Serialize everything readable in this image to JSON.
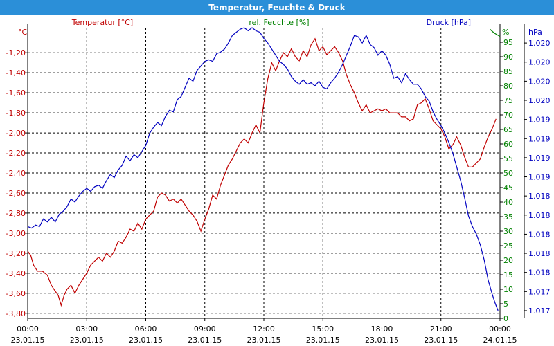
{
  "window": {
    "title": "Temperatur, Feuchte & Druck"
  },
  "chart_data": {
    "type": "line",
    "title": "Temperatur, Feuchte & Druck",
    "grid": true,
    "x": {
      "labels": [
        {
          "time": "00:00",
          "date": "23.01.15",
          "hour": 0
        },
        {
          "time": "03:00",
          "date": "23.01.15",
          "hour": 3
        },
        {
          "time": "06:00",
          "date": "23.01.15",
          "hour": 6
        },
        {
          "time": "09:00",
          "date": "23.01.15",
          "hour": 9
        },
        {
          "time": "12:00",
          "date": "23.01.15",
          "hour": 12
        },
        {
          "time": "15:00",
          "date": "23.01.15",
          "hour": 15
        },
        {
          "time": "18:00",
          "date": "23.01.15",
          "hour": 18
        },
        {
          "time": "21:00",
          "date": "23.01.15",
          "hour": 21
        },
        {
          "time": "00:00",
          "date": "24.01.15",
          "hour": 24
        }
      ],
      "range": [
        0,
        24
      ]
    },
    "axes": {
      "temperature": {
        "label": "Temperatur [°C]",
        "unit": "°C",
        "color": "#c00000",
        "range": [
          -3.85,
          -0.95
        ],
        "ticks": [
          "-1,20",
          "-1,40",
          "-1,60",
          "-1,80",
          "-2,00",
          "-2,20",
          "-2,40",
          "-2,60",
          "-2,80",
          "-3,00",
          "-3,20",
          "-3,40",
          "-3,60",
          "-3,80"
        ],
        "tick_values": [
          -1.2,
          -1.4,
          -1.6,
          -1.8,
          -2.0,
          -2.2,
          -2.4,
          -2.6,
          -2.8,
          -3.0,
          -3.2,
          -3.4,
          -3.6,
          -3.8
        ]
      },
      "humidity": {
        "label": "rel. Feuchte [%]",
        "unit": "%",
        "color": "#008000",
        "range": [
          0,
          100
        ],
        "ticks": [
          "95",
          "90",
          "85",
          "80",
          "75",
          "70",
          "65",
          "60",
          "55",
          "50",
          "45",
          "40",
          "35",
          "30",
          "25",
          "20",
          "15",
          "10",
          "5",
          "0"
        ],
        "tick_values": [
          95,
          90,
          85,
          80,
          75,
          70,
          65,
          60,
          55,
          50,
          45,
          40,
          35,
          30,
          25,
          20,
          15,
          10,
          5,
          0
        ]
      },
      "pressure": {
        "label": "Druck [hPa]",
        "unit": "hPa",
        "color": "#0000c0",
        "range": [
          1016.6,
          1020.4
        ],
        "ticks": [
          "1.020",
          "1.020",
          "1.020",
          "1.020",
          "1.019",
          "1.019",
          "1.019",
          "1.019",
          "1.018",
          "1.018",
          "1.018",
          "1.018",
          "1.018",
          "1.017",
          "1.017"
        ],
        "tick_values": [
          1020.2,
          1019.95,
          1019.7,
          1019.45,
          1019.2,
          1018.95,
          1018.7,
          1018.45,
          1018.2,
          1017.95,
          1017.7,
          1017.45,
          1017.2,
          1016.95,
          1016.7
        ]
      }
    },
    "series": [
      {
        "name": "Temperatur [°C]",
        "axis": "temperature",
        "color": "#c00000",
        "points": [
          [
            0.0,
            -3.18
          ],
          [
            0.15,
            -3.22
          ],
          [
            0.3,
            -3.32
          ],
          [
            0.5,
            -3.38
          ],
          [
            0.75,
            -3.38
          ],
          [
            1.0,
            -3.42
          ],
          [
            1.2,
            -3.52
          ],
          [
            1.4,
            -3.58
          ],
          [
            1.55,
            -3.62
          ],
          [
            1.7,
            -3.72
          ],
          [
            1.85,
            -3.62
          ],
          [
            2.0,
            -3.56
          ],
          [
            2.2,
            -3.52
          ],
          [
            2.4,
            -3.6
          ],
          [
            2.6,
            -3.52
          ],
          [
            2.8,
            -3.46
          ],
          [
            3.0,
            -3.4
          ],
          [
            3.2,
            -3.32
          ],
          [
            3.4,
            -3.28
          ],
          [
            3.6,
            -3.24
          ],
          [
            3.8,
            -3.28
          ],
          [
            4.0,
            -3.2
          ],
          [
            4.2,
            -3.24
          ],
          [
            4.4,
            -3.18
          ],
          [
            4.6,
            -3.08
          ],
          [
            4.8,
            -3.1
          ],
          [
            5.0,
            -3.04
          ],
          [
            5.2,
            -2.96
          ],
          [
            5.4,
            -2.98
          ],
          [
            5.6,
            -2.9
          ],
          [
            5.8,
            -2.96
          ],
          [
            6.0,
            -2.86
          ],
          [
            6.2,
            -2.82
          ],
          [
            6.4,
            -2.78
          ],
          [
            6.6,
            -2.64
          ],
          [
            6.8,
            -2.6
          ],
          [
            7.0,
            -2.62
          ],
          [
            7.2,
            -2.68
          ],
          [
            7.4,
            -2.66
          ],
          [
            7.6,
            -2.7
          ],
          [
            7.8,
            -2.66
          ],
          [
            8.0,
            -2.72
          ],
          [
            8.2,
            -2.78
          ],
          [
            8.4,
            -2.82
          ],
          [
            8.6,
            -2.88
          ],
          [
            8.8,
            -2.98
          ],
          [
            9.0,
            -2.86
          ],
          [
            9.2,
            -2.76
          ],
          [
            9.4,
            -2.62
          ],
          [
            9.6,
            -2.66
          ],
          [
            9.8,
            -2.52
          ],
          [
            10.0,
            -2.42
          ],
          [
            10.2,
            -2.32
          ],
          [
            10.4,
            -2.26
          ],
          [
            10.6,
            -2.18
          ],
          [
            10.8,
            -2.1
          ],
          [
            11.0,
            -2.06
          ],
          [
            11.2,
            -2.1
          ],
          [
            11.4,
            -2.0
          ],
          [
            11.6,
            -1.92
          ],
          [
            11.8,
            -2.0
          ],
          [
            12.0,
            -1.7
          ],
          [
            12.2,
            -1.46
          ],
          [
            12.4,
            -1.3
          ],
          [
            12.6,
            -1.38
          ],
          [
            12.8,
            -1.28
          ],
          [
            13.0,
            -1.2
          ],
          [
            13.2,
            -1.24
          ],
          [
            13.4,
            -1.16
          ],
          [
            13.6,
            -1.24
          ],
          [
            13.8,
            -1.28
          ],
          [
            14.0,
            -1.18
          ],
          [
            14.2,
            -1.24
          ],
          [
            14.4,
            -1.12
          ],
          [
            14.6,
            -1.06
          ],
          [
            14.8,
            -1.18
          ],
          [
            15.0,
            -1.14
          ],
          [
            15.2,
            -1.22
          ],
          [
            15.4,
            -1.18
          ],
          [
            15.6,
            -1.14
          ],
          [
            15.8,
            -1.2
          ],
          [
            16.0,
            -1.28
          ],
          [
            16.2,
            -1.42
          ],
          [
            16.4,
            -1.52
          ],
          [
            16.6,
            -1.6
          ],
          [
            16.8,
            -1.7
          ],
          [
            17.0,
            -1.78
          ],
          [
            17.2,
            -1.72
          ],
          [
            17.4,
            -1.8
          ],
          [
            17.6,
            -1.78
          ],
          [
            17.8,
            -1.76
          ],
          [
            18.0,
            -1.78
          ],
          [
            18.2,
            -1.76
          ],
          [
            18.4,
            -1.8
          ],
          [
            18.6,
            -1.8
          ],
          [
            18.8,
            -1.8
          ],
          [
            19.0,
            -1.84
          ],
          [
            19.2,
            -1.84
          ],
          [
            19.4,
            -1.88
          ],
          [
            19.6,
            -1.86
          ],
          [
            19.8,
            -1.72
          ],
          [
            20.0,
            -1.7
          ],
          [
            20.2,
            -1.66
          ],
          [
            20.4,
            -1.76
          ],
          [
            20.6,
            -1.88
          ],
          [
            20.8,
            -1.92
          ],
          [
            21.0,
            -1.96
          ],
          [
            21.2,
            -2.04
          ],
          [
            21.4,
            -2.16
          ],
          [
            21.6,
            -2.12
          ],
          [
            21.8,
            -2.04
          ],
          [
            22.0,
            -2.12
          ],
          [
            22.2,
            -2.24
          ],
          [
            22.4,
            -2.34
          ],
          [
            22.6,
            -2.34
          ],
          [
            22.8,
            -2.3
          ],
          [
            23.0,
            -2.26
          ],
          [
            23.2,
            -2.14
          ],
          [
            23.4,
            -2.04
          ],
          [
            23.6,
            -1.96
          ],
          [
            23.8,
            -1.86
          ]
        ]
      },
      {
        "name": "rel. Feuchte [%]",
        "axis": "humidity",
        "color": "#008000",
        "points": [
          [
            23.5,
            99.4
          ],
          [
            23.7,
            98.2
          ],
          [
            23.85,
            97.6
          ],
          [
            24.0,
            97.0
          ]
        ]
      },
      {
        "name": "Druck [hPa]",
        "axis": "pressure",
        "color": "#0000c0",
        "points": [
          [
            0.0,
            1017.8
          ],
          [
            0.2,
            1017.78
          ],
          [
            0.4,
            1017.82
          ],
          [
            0.6,
            1017.8
          ],
          [
            0.8,
            1017.9
          ],
          [
            1.0,
            1017.86
          ],
          [
            1.2,
            1017.92
          ],
          [
            1.4,
            1017.86
          ],
          [
            1.6,
            1017.96
          ],
          [
            1.8,
            1018.0
          ],
          [
            2.0,
            1018.06
          ],
          [
            2.2,
            1018.16
          ],
          [
            2.4,
            1018.12
          ],
          [
            2.6,
            1018.2
          ],
          [
            2.8,
            1018.26
          ],
          [
            3.0,
            1018.3
          ],
          [
            3.2,
            1018.26
          ],
          [
            3.4,
            1018.32
          ],
          [
            3.6,
            1018.34
          ],
          [
            3.8,
            1018.3
          ],
          [
            4.0,
            1018.4
          ],
          [
            4.2,
            1018.48
          ],
          [
            4.4,
            1018.44
          ],
          [
            4.6,
            1018.54
          ],
          [
            4.8,
            1018.6
          ],
          [
            5.0,
            1018.72
          ],
          [
            5.2,
            1018.66
          ],
          [
            5.4,
            1018.74
          ],
          [
            5.6,
            1018.7
          ],
          [
            5.8,
            1018.78
          ],
          [
            6.0,
            1018.86
          ],
          [
            6.2,
            1019.02
          ],
          [
            6.4,
            1019.1
          ],
          [
            6.6,
            1019.16
          ],
          [
            6.8,
            1019.12
          ],
          [
            7.0,
            1019.24
          ],
          [
            7.2,
            1019.32
          ],
          [
            7.4,
            1019.3
          ],
          [
            7.6,
            1019.46
          ],
          [
            7.8,
            1019.5
          ],
          [
            8.0,
            1019.62
          ],
          [
            8.2,
            1019.74
          ],
          [
            8.4,
            1019.7
          ],
          [
            8.6,
            1019.84
          ],
          [
            8.8,
            1019.9
          ],
          [
            9.0,
            1019.96
          ],
          [
            9.2,
            1019.98
          ],
          [
            9.4,
            1019.96
          ],
          [
            9.6,
            1020.06
          ],
          [
            9.8,
            1020.08
          ],
          [
            10.0,
            1020.12
          ],
          [
            10.2,
            1020.2
          ],
          [
            10.4,
            1020.3
          ],
          [
            10.6,
            1020.34
          ],
          [
            10.8,
            1020.38
          ],
          [
            11.0,
            1020.4
          ],
          [
            11.2,
            1020.36
          ],
          [
            11.4,
            1020.4
          ],
          [
            11.6,
            1020.36
          ],
          [
            11.8,
            1020.34
          ],
          [
            12.0,
            1020.26
          ],
          [
            12.2,
            1020.2
          ],
          [
            12.4,
            1020.12
          ],
          [
            12.6,
            1020.04
          ],
          [
            12.8,
            1019.96
          ],
          [
            13.0,
            1019.92
          ],
          [
            13.2,
            1019.86
          ],
          [
            13.4,
            1019.76
          ],
          [
            13.6,
            1019.7
          ],
          [
            13.8,
            1019.66
          ],
          [
            14.0,
            1019.72
          ],
          [
            14.2,
            1019.66
          ],
          [
            14.4,
            1019.68
          ],
          [
            14.6,
            1019.64
          ],
          [
            14.8,
            1019.7
          ],
          [
            15.0,
            1019.62
          ],
          [
            15.2,
            1019.6
          ],
          [
            15.4,
            1019.68
          ],
          [
            15.6,
            1019.74
          ],
          [
            15.8,
            1019.82
          ],
          [
            16.0,
            1019.92
          ],
          [
            16.2,
            1020.04
          ],
          [
            16.4,
            1020.16
          ],
          [
            16.6,
            1020.3
          ],
          [
            16.8,
            1020.28
          ],
          [
            17.0,
            1020.2
          ],
          [
            17.2,
            1020.3
          ],
          [
            17.4,
            1020.18
          ],
          [
            17.6,
            1020.14
          ],
          [
            17.8,
            1020.04
          ],
          [
            18.0,
            1020.1
          ],
          [
            18.2,
            1020.04
          ],
          [
            18.4,
            1019.92
          ],
          [
            18.6,
            1019.74
          ],
          [
            18.8,
            1019.76
          ],
          [
            19.0,
            1019.68
          ],
          [
            19.2,
            1019.8
          ],
          [
            19.4,
            1019.72
          ],
          [
            19.6,
            1019.66
          ],
          [
            19.8,
            1019.66
          ],
          [
            20.0,
            1019.6
          ],
          [
            20.2,
            1019.5
          ],
          [
            20.4,
            1019.44
          ],
          [
            20.6,
            1019.3
          ],
          [
            20.8,
            1019.2
          ],
          [
            21.0,
            1019.12
          ],
          [
            21.2,
            1019.02
          ],
          [
            21.4,
            1018.9
          ],
          [
            21.6,
            1018.76
          ],
          [
            21.8,
            1018.58
          ],
          [
            22.0,
            1018.4
          ],
          [
            22.2,
            1018.18
          ],
          [
            22.4,
            1017.94
          ],
          [
            22.6,
            1017.8
          ],
          [
            22.8,
            1017.7
          ],
          [
            23.0,
            1017.56
          ],
          [
            23.2,
            1017.36
          ],
          [
            23.4,
            1017.1
          ],
          [
            23.6,
            1016.92
          ],
          [
            23.75,
            1016.8
          ],
          [
            23.9,
            1016.7
          ]
        ]
      }
    ]
  }
}
